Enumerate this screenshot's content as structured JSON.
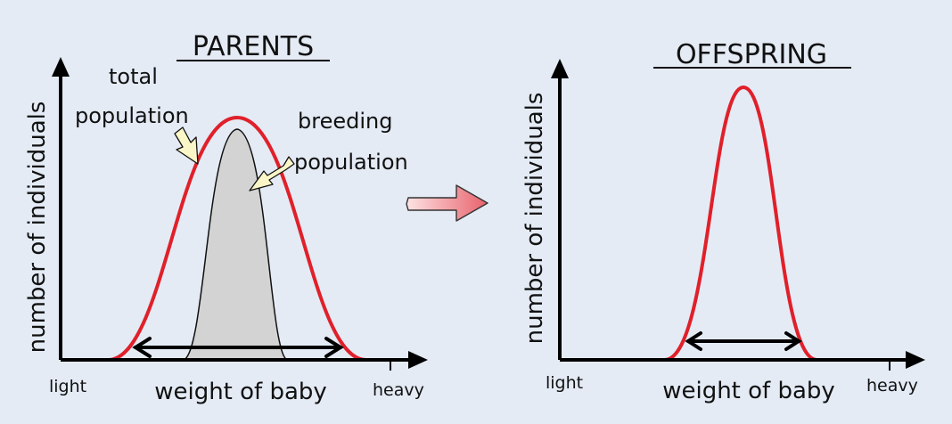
{
  "colors": {
    "background": "#e4ebf5",
    "total_curve": "#e0202a",
    "breeding_fill": "#d3d3d3",
    "axis": "#000000",
    "arrow_fill_start": "#fde3e4",
    "arrow_fill_end": "#e8626c",
    "callout_fill": "#fbf6c8"
  },
  "parents": {
    "title": "PARENTS",
    "ylabel": "number of individuals",
    "xlabel": "weight of baby",
    "tick_low": "light",
    "tick_high": "heavy",
    "label_total": [
      "total",
      "population"
    ],
    "label_breeding": [
      "breeding",
      "population"
    ]
  },
  "offspring": {
    "title": "OFFSPRING",
    "ylabel": "number of individuals",
    "xlabel": "weight of baby",
    "tick_low": "light",
    "tick_high": "heavy"
  },
  "transition_icon": "right-arrow-icon"
}
